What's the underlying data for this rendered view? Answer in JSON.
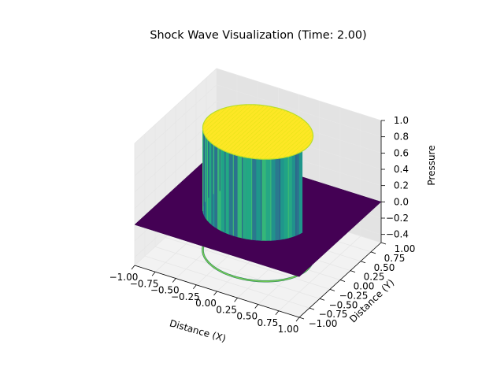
{
  "chart_data": {
    "type": "surface3d",
    "title": "Shock Wave Visualization (Time: 2.00)",
    "xlabel": "Distance (X)",
    "ylabel": "Distance (Y)",
    "zlabel": "Pressure",
    "xlim": [
      -1.0,
      1.0
    ],
    "ylim": [
      -1.0,
      1.0
    ],
    "zlim": [
      -0.5,
      1.0
    ],
    "x_ticks": [
      -1.0,
      -0.75,
      -0.5,
      -0.25,
      0.0,
      0.25,
      0.5,
      0.75,
      1.0
    ],
    "x_tick_labels": [
      "−1.00",
      "−0.75",
      "−0.50",
      "−0.25",
      "0.00",
      "0.25",
      "0.50",
      "0.75",
      "1.00"
    ],
    "y_ticks": [
      -1.0,
      -0.75,
      -0.5,
      -0.25,
      0.0,
      0.25,
      0.5,
      0.75,
      1.0
    ],
    "y_tick_labels": [
      "−1.00",
      "−0.75",
      "−0.50",
      "−0.25",
      "0.00",
      "0.25",
      "0.50",
      "0.75",
      "1.00"
    ],
    "z_ticks": [
      -0.4,
      -0.2,
      0.0,
      0.2,
      0.4,
      0.6,
      0.8,
      1.0
    ],
    "z_tick_labels": [
      "−0.4",
      "−0.2",
      "0.0",
      "0.2",
      "0.4",
      "0.6",
      "0.8",
      "1.0"
    ],
    "surface": {
      "shape": "step-disc",
      "radius": 0.6,
      "inside_value": 1.0,
      "outside_value": 0.0,
      "colormap": "viridis",
      "contour_projection": {
        "offset": -0.5,
        "level_value": 0.5
      }
    },
    "colors": {
      "low": "#440154",
      "mid": "#21918c",
      "high": "#fde725",
      "contour": "#7ad151",
      "pane": "#f2f2f2",
      "grid": "#e6e6e6"
    },
    "grid": true
  }
}
